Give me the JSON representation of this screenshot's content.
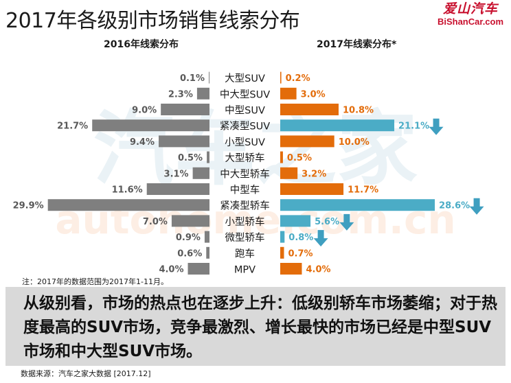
{
  "title": "2017年各级别市场销售线索分布",
  "logo": {
    "line1": "爱山汽车",
    "line2": "BiShanCar.com"
  },
  "watermark": {
    "chinese": "汽车之家",
    "latin": "autohome.com.cn"
  },
  "chart_data": {
    "type": "bar",
    "orientation": "horizontal-butterfly",
    "categories": [
      "大型SUV",
      "中大型SUV",
      "中型SUV",
      "紧凑型SUV",
      "小型SUV",
      "大型轿车",
      "中大型轿车",
      "中型车",
      "紧凑型轿车",
      "小型轿车",
      "微型轿车",
      "跑车",
      "MPV"
    ],
    "series": [
      {
        "name": "2016年线索分布",
        "values": [
          0.1,
          2.3,
          9.0,
          21.7,
          9.4,
          0.5,
          3.1,
          11.6,
          29.9,
          7.0,
          0.9,
          0.6,
          4.0
        ],
        "labels": [
          "0.1%",
          "2.3%",
          "9.0%",
          "21.7%",
          "9.4%",
          "0.5%",
          "3.1%",
          "11.6%",
          "29.9%",
          "7.0%",
          "0.9%",
          "0.6%",
          "4.0%"
        ],
        "color": "#7f7f7f"
      },
      {
        "name": "2017年线索分布*",
        "values": [
          0.2,
          3.0,
          10.8,
          21.1,
          10.0,
          0.5,
          3.2,
          11.7,
          28.6,
          5.6,
          0.8,
          0.7,
          4.0
        ],
        "labels": [
          "0.2%",
          "3.0%",
          "10.8%",
          "21.1%",
          "10.0%",
          "0.5%",
          "3.2%",
          "11.7%",
          "28.6%",
          "5.6%",
          "0.8%",
          "0.7%",
          "4.0%"
        ],
        "colors": [
          "#e36c0a",
          "#e36c0a",
          "#e36c0a",
          "#4bacc6",
          "#e36c0a",
          "#e36c0a",
          "#e36c0a",
          "#e36c0a",
          "#4bacc6",
          "#4bacc6",
          "#4bacc6",
          "#e36c0a",
          "#e36c0a"
        ],
        "decline_arrows": [
          false,
          false,
          false,
          true,
          false,
          false,
          false,
          false,
          true,
          true,
          true,
          false,
          false
        ]
      }
    ],
    "colors": {
      "up": "#e36c0a",
      "down": "#4bacc6",
      "arrow": "#3f9fc0",
      "prev": "#7f7f7f"
    },
    "grid": false,
    "legend": "none"
  },
  "note": "注：2017年的数据范围为2017年1-11月。",
  "callout": "从级别看，市场的热点也在逐步上升：低级别轿车市场萎缩；对于热度最高的SUV市场，竞争最激烈、增长最快的市场已经是中型SUV市场和中大型SUV市场。",
  "source": "数据来源：汽车之家大数据 [2017.12]"
}
